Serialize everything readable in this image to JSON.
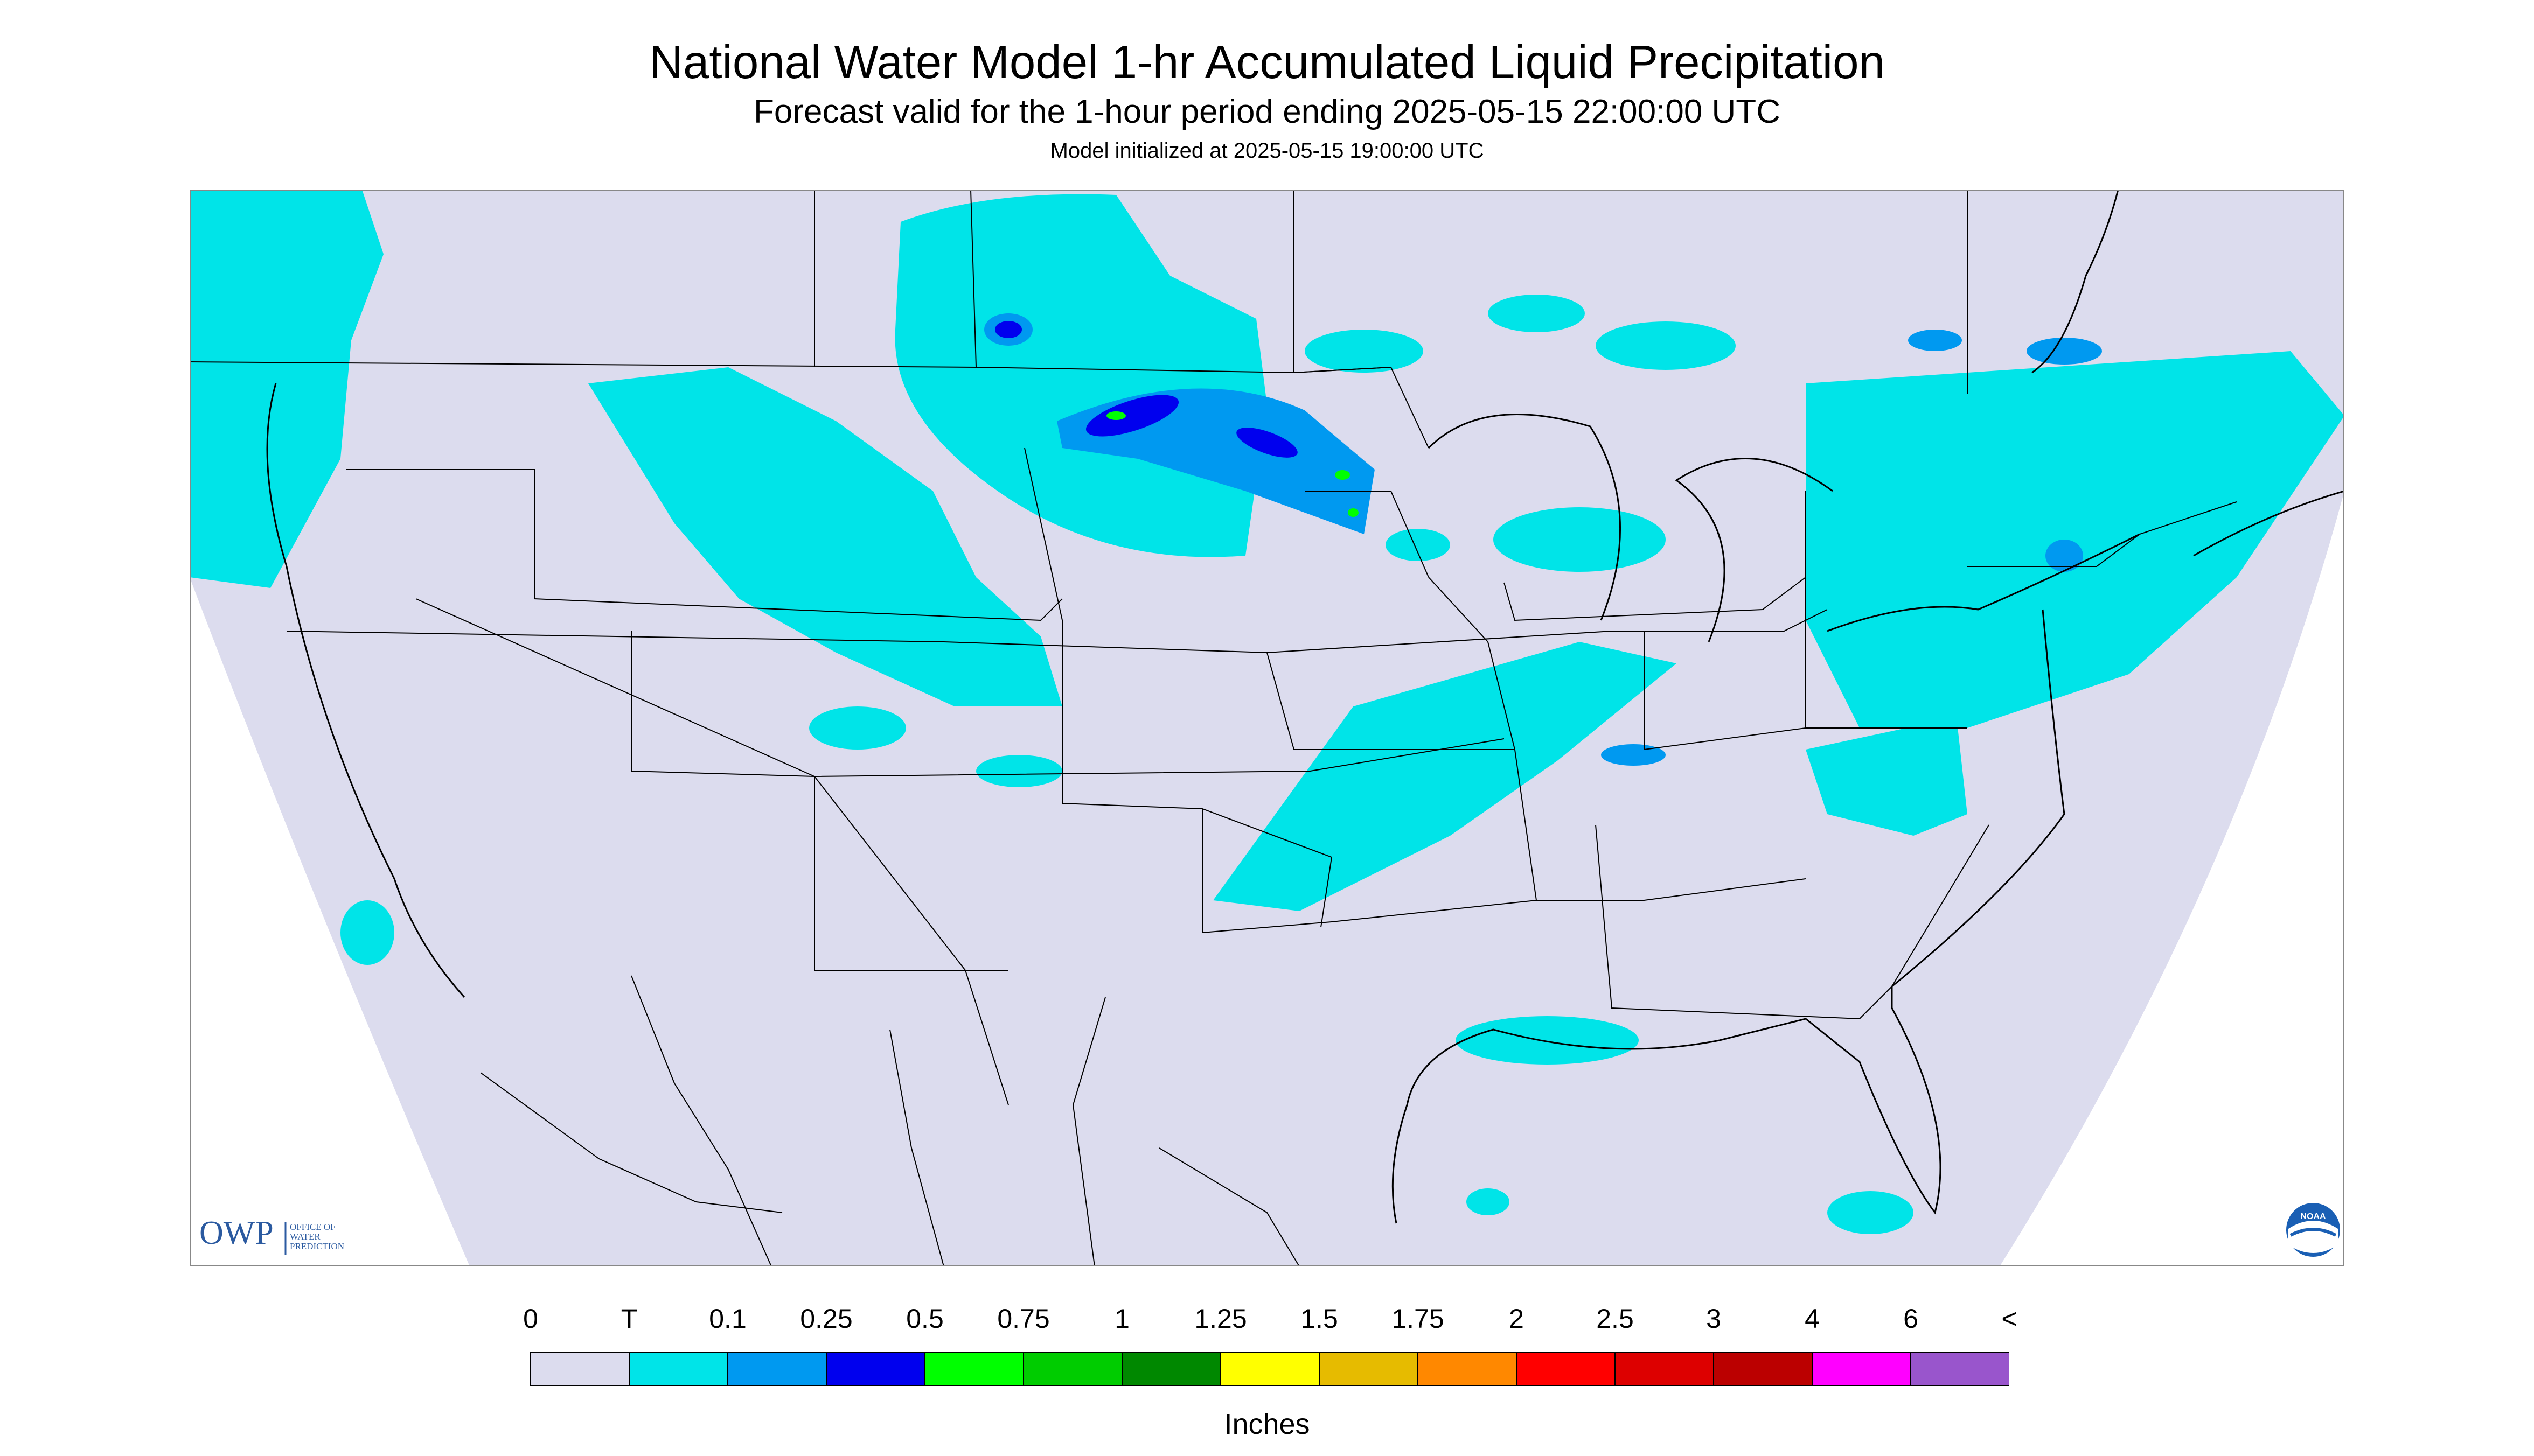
{
  "header": {
    "title": "National Water Model 1-hr Accumulated Liquid Precipitation",
    "subtitle": "Forecast valid for the 1-hour period ending 2025-05-15 22:00:00 UTC",
    "init": "Model initialized at 2025-05-15 19:00:00 UTC"
  },
  "map": {
    "region": "CONUS",
    "colors": {
      "background": "#dcdcee",
      "precip_trace": "#00e4e8",
      "precip_0_1": "#0099f0",
      "precip_0_25": "#0000ee",
      "precip_0_5": "#00ff00",
      "borders": "#000000"
    }
  },
  "logos": {
    "owp_letters": "OWP",
    "owp_text": [
      "OFFICE OF",
      "WATER",
      "PREDICTION"
    ],
    "noaa_text": "NOAA"
  },
  "legend": {
    "labels": [
      "0",
      "T",
      "0.1",
      "0.25",
      "0.5",
      "0.75",
      "1",
      "1.25",
      "1.5",
      "1.75",
      "2",
      "2.5",
      "3",
      "4",
      "6",
      "<"
    ],
    "colors": [
      "#dcdcee",
      "#00e4e8",
      "#0099f0",
      "#0000ee",
      "#00ff00",
      "#00cc00",
      "#008800",
      "#ffff00",
      "#e6bb00",
      "#ff8800",
      "#ff0000",
      "#dd0000",
      "#bb0000",
      "#ff00ff",
      "#9955cc"
    ],
    "units": "Inches"
  }
}
